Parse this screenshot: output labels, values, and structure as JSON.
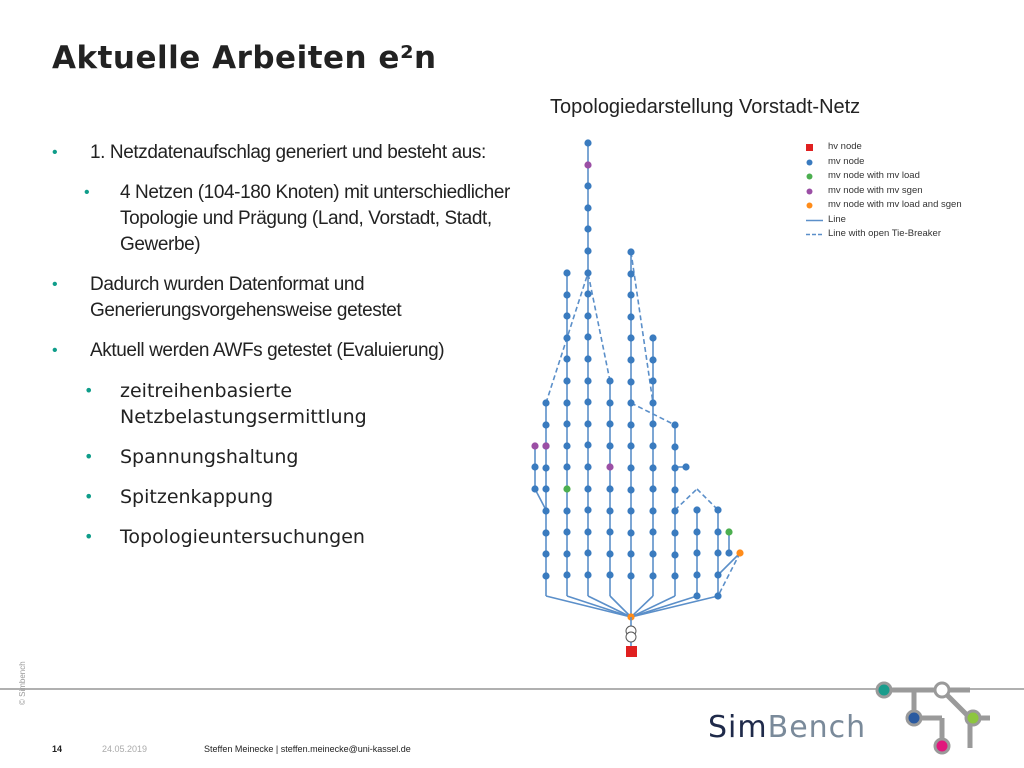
{
  "slide": {
    "title": "Aktuelle Arbeiten e²n",
    "bullets": [
      {
        "level": 1,
        "text": "1. Netzdatenaufschlag generiert und besteht aus:"
      },
      {
        "level": 2,
        "text": "4 Netzen (104-180 Knoten) mit unterschiedlicher Topologie und Prägung (Land, Vorstadt, Stadt, Gewerbe)"
      },
      {
        "level": 1,
        "text": "Dadurch wurden Datenformat und Generierungsvorgehensweise getestet"
      },
      {
        "level": 1,
        "text": "Aktuell werden AWFs getestet (Evaluierung)"
      },
      {
        "level": 2,
        "text": "zeitreihenbasierte Netzbelastungsermittlung"
      },
      {
        "level": 2,
        "text": "Spannungshaltung"
      },
      {
        "level": 2,
        "text": "Spitzenkappung"
      },
      {
        "level": 2,
        "text": "Topologieuntersuchungen"
      }
    ]
  },
  "diagram": {
    "title": "Topologiedarstellung Vorstadt-Netz",
    "legend": [
      {
        "label": "hv node",
        "symbol": "square",
        "color": "#e02020"
      },
      {
        "label": "mv node",
        "symbol": "dot",
        "color": "#3a7bbf"
      },
      {
        "label": "mv node with mv load",
        "symbol": "dot",
        "color": "#4caf50"
      },
      {
        "label": "mv node with mv sgen",
        "symbol": "dot",
        "color": "#9b4fa5"
      },
      {
        "label": "mv node with mv load and sgen",
        "symbol": "dot",
        "color": "#ff8c1a"
      },
      {
        "label": "Line",
        "symbol": "line",
        "color": "#5b8fc9"
      },
      {
        "label": "Line with open Tie-Breaker",
        "symbol": "dashed",
        "color": "#5b8fc9"
      }
    ],
    "node_colors": {
      "mv": "#3a7bbf",
      "load": "#4caf50",
      "sgen": "#9b4fa5",
      "load_sgen": "#ff8c1a",
      "hv": "#e02020",
      "line": "#5b8fc9"
    }
  },
  "footer": {
    "page": "14",
    "date": "24.05.2019",
    "author": "Steffen Meinecke | steffen.meinecke@uni-kassel.de",
    "side": "© Simbench",
    "logo_sim": "Sim",
    "logo_bench": "Bench"
  },
  "colors": {
    "accent": "#0f9d8a",
    "logo_dark": "#1f2a4a",
    "logo_light": "#7a8a9a",
    "circle_teal": "#1a9c8c",
    "circle_blue": "#2a5aa0",
    "circle_green": "#8dc63f",
    "circle_pink": "#e0187c"
  }
}
